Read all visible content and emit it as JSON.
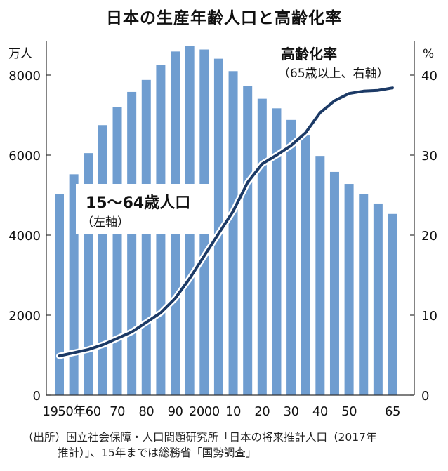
{
  "chart_data": {
    "type": "bar+line",
    "title": "日本の生産年齢人口と高齢化率",
    "left_axis": {
      "unit": "万人",
      "ticks": [
        "8000",
        "6000",
        "4000",
        "2000",
        "0"
      ],
      "range": [
        0,
        9000
      ]
    },
    "right_axis": {
      "unit": "%",
      "ticks": [
        "40",
        "30",
        "20",
        "10",
        "0"
      ],
      "range": [
        0,
        45
      ]
    },
    "x_tick_labels": [
      {
        "year": 1950,
        "label": "1950年"
      },
      {
        "year": 1960,
        "label": "60"
      },
      {
        "year": 1970,
        "label": "70"
      },
      {
        "year": 1980,
        "label": "80"
      },
      {
        "year": 1990,
        "label": "90"
      },
      {
        "year": 2000,
        "label": "2000"
      },
      {
        "year": 2010,
        "label": "10"
      },
      {
        "year": 2020,
        "label": "20"
      },
      {
        "year": 2030,
        "label": "30"
      },
      {
        "year": 2040,
        "label": "40"
      },
      {
        "year": 2050,
        "label": "50"
      },
      {
        "year": 2065,
        "label": "65"
      }
    ],
    "bar_series": {
      "name": "15〜64歳人口",
      "sub": "（左軸）",
      "color": "#6f9dd0",
      "x": [
        1950,
        1955,
        1960,
        1965,
        1970,
        1975,
        1980,
        1985,
        1990,
        1995,
        2000,
        2005,
        2010,
        2015,
        2020,
        2025,
        2030,
        2035,
        2040,
        2045,
        2050,
        2055,
        2060,
        2065
      ],
      "values": [
        5020,
        5520,
        6050,
        6750,
        7210,
        7580,
        7880,
        8250,
        8590,
        8720,
        8640,
        8410,
        8100,
        7730,
        7410,
        7170,
        6880,
        6490,
        5980,
        5580,
        5280,
        5030,
        4790,
        4530
      ]
    },
    "line_series": {
      "name": "高齢化率",
      "sub": "（65歳以上、右軸）",
      "color": "#1c3a66",
      "x": [
        1950,
        1955,
        1960,
        1965,
        1970,
        1975,
        1980,
        1985,
        1990,
        1995,
        2000,
        2005,
        2010,
        2015,
        2020,
        2025,
        2030,
        2035,
        2040,
        2045,
        2050,
        2055,
        2060,
        2065
      ],
      "values": [
        4.9,
        5.3,
        5.7,
        6.3,
        7.1,
        7.9,
        9.1,
        10.3,
        12.1,
        14.6,
        17.4,
        20.2,
        23.0,
        26.6,
        28.9,
        30.0,
        31.2,
        32.8,
        35.3,
        36.8,
        37.7,
        38.0,
        38.1,
        38.4
      ]
    }
  },
  "source": {
    "line1": "（出所）国立社会保障・人口問題研究所「日本の将来推計人口（2017年",
    "line2": "推計）」、15年までは総務省「国勢調査」"
  }
}
